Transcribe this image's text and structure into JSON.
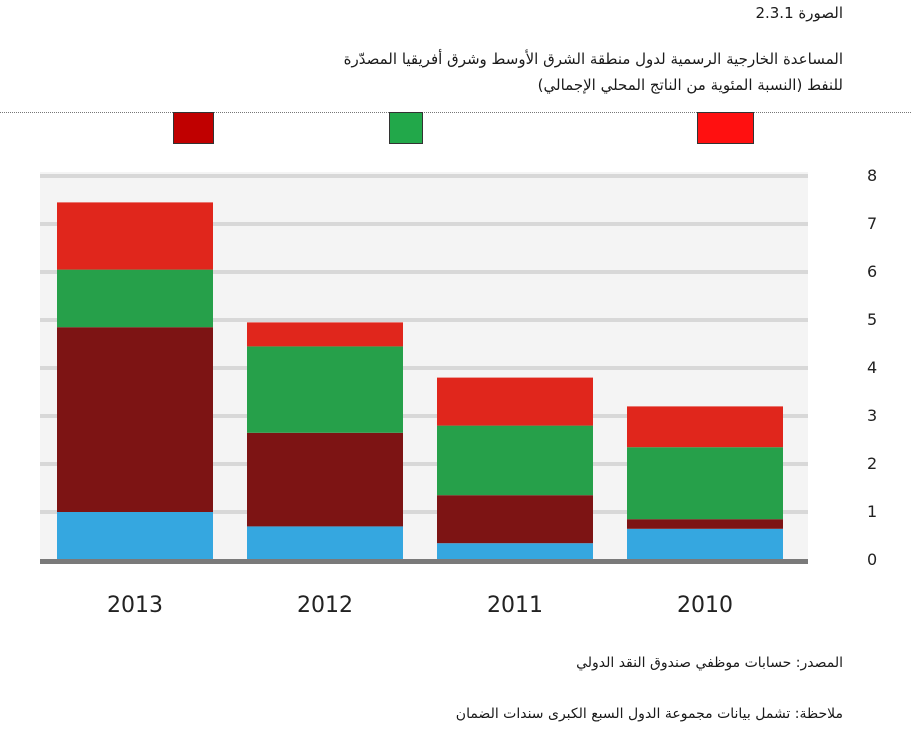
{
  "figure": {
    "label": "الصورة 2.3.1",
    "title_line1": "المساعدة الخارجية الرسمية لدول منطقة الشرق الأوسط وشرق أفريقيا المصدّرة",
    "title_line2": "للنفط (النسبة المئوية من الناتج المحلي الإجمالي)"
  },
  "legend_swatches": [
    {
      "color": "#c00000"
    },
    {
      "color": "#22a84a"
    },
    {
      "color": "#ff1010"
    }
  ],
  "chart_data": {
    "type": "bar",
    "stacked": true,
    "categories": [
      "2013",
      "2012",
      "2011",
      "2010"
    ],
    "series": [
      {
        "color": "#35a7e0",
        "values": [
          1.0,
          0.7,
          0.35,
          0.65
        ]
      },
      {
        "color": "#7d1414",
        "values": [
          3.85,
          1.95,
          1.0,
          0.2
        ]
      },
      {
        "color": "#26a04a",
        "values": [
          1.2,
          1.8,
          1.45,
          1.5
        ]
      },
      {
        "color": "#e0261c",
        "values": [
          1.4,
          0.5,
          1.0,
          0.85
        ]
      }
    ],
    "y_ticks": [
      "0",
      "1",
      "2",
      "3",
      "4",
      "5",
      "6",
      "7",
      "8"
    ],
    "ylim": [
      0,
      8
    ],
    "grid": true
  },
  "footer": {
    "source": "المصدر: حسابات موظفي صندوق النقد الدولي",
    "note": "ملاحظة: تشمل بيانات مجموعة الدول السبع الكبرى سندات الضمان"
  }
}
